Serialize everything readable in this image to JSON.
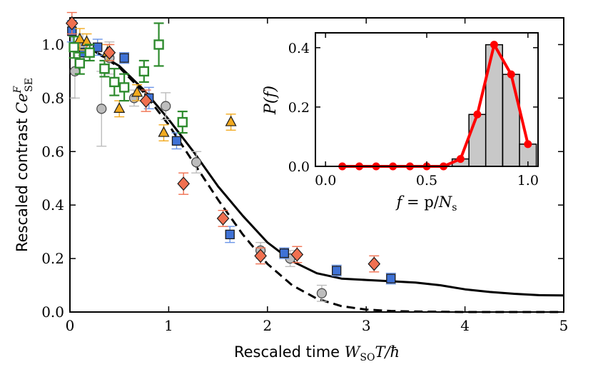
{
  "chart_data": {
    "main": {
      "type": "scatter",
      "xlabel_text": "Rescaled time",
      "xlabel_math": "W",
      "xlabel_sub": "SO",
      "xlabel_rest": "T/ħ",
      "ylabel_text": "Rescaled contrast",
      "ylabel_math": "Ce",
      "ylabel_sup": "F",
      "ylabel_sub": "SE",
      "xlim": [
        0,
        5
      ],
      "ylim": [
        0,
        1.1
      ],
      "xticks": [
        0,
        1,
        2,
        3,
        4,
        5
      ],
      "xtick_labels": [
        "0",
        "1",
        "2",
        "3",
        "4",
        "5"
      ],
      "yticks": [
        0.0,
        0.2,
        0.4,
        0.6,
        0.8,
        1.0
      ],
      "ytick_labels": [
        "0.0",
        "0.2",
        "0.4",
        "0.6",
        "0.8",
        "1.0"
      ],
      "curves": [
        {
          "name": "solid-curve",
          "style": "solid",
          "color": "#000000",
          "x": [
            0,
            0.25,
            0.5,
            0.75,
            1.0,
            1.25,
            1.5,
            1.75,
            2.0,
            2.25,
            2.5,
            2.75,
            3.0,
            3.25,
            3.5,
            3.75,
            4.0,
            4.25,
            4.5,
            4.75,
            5.0
          ],
          "y": [
            1.0,
            0.975,
            0.92,
            0.83,
            0.72,
            0.6,
            0.47,
            0.36,
            0.26,
            0.19,
            0.145,
            0.125,
            0.12,
            0.115,
            0.11,
            0.1,
            0.085,
            0.075,
            0.068,
            0.063,
            0.062
          ]
        },
        {
          "name": "dashed-curve",
          "style": "dashed",
          "color": "#000000",
          "x": [
            0,
            0.25,
            0.5,
            0.75,
            1.0,
            1.25,
            1.5,
            1.75,
            2.0,
            2.25,
            2.5,
            2.75,
            3.0,
            3.25,
            3.5,
            3.75,
            4.0,
            4.5,
            5.0
          ],
          "y": [
            1.0,
            0.975,
            0.915,
            0.82,
            0.7,
            0.56,
            0.42,
            0.29,
            0.18,
            0.1,
            0.05,
            0.022,
            0.009,
            0.004,
            0.002,
            0.001,
            0.0,
            0.0,
            0.0
          ]
        }
      ],
      "series": [
        {
          "name": "gray-circles",
          "marker": "circle",
          "fill": "#bdbdbd",
          "edge": "#444444",
          "errcolor": "#bdbdbd",
          "points": [
            {
              "x": 0.05,
              "y": 0.9,
              "err": 0.1
            },
            {
              "x": 0.13,
              "y": 1.0,
              "err": 0.04
            },
            {
              "x": 0.32,
              "y": 0.76,
              "err": 0.14
            },
            {
              "x": 0.4,
              "y": 0.95,
              "err": 0.06
            },
            {
              "x": 0.65,
              "y": 0.8,
              "err": 0.03
            },
            {
              "x": 0.97,
              "y": 0.77,
              "err": 0.05
            },
            {
              "x": 1.28,
              "y": 0.56,
              "err": 0.04
            },
            {
              "x": 1.93,
              "y": 0.23,
              "err": 0.03
            },
            {
              "x": 2.23,
              "y": 0.2,
              "err": 0.03
            },
            {
              "x": 2.55,
              "y": 0.07,
              "err": 0.03
            }
          ]
        },
        {
          "name": "blue-squares",
          "marker": "square",
          "fill": "#3f72d6",
          "edge": "#1a1a1a",
          "errcolor": "#6a95e8",
          "points": [
            {
              "x": 0.02,
              "y": 1.05,
              "err": 0.04
            },
            {
              "x": 0.14,
              "y": 0.97,
              "err": 0.03
            },
            {
              "x": 0.28,
              "y": 0.99,
              "err": 0.03
            },
            {
              "x": 0.55,
              "y": 0.95,
              "err": 0.02
            },
            {
              "x": 0.8,
              "y": 0.8,
              "err": 0.04
            },
            {
              "x": 1.08,
              "y": 0.64,
              "err": 0.03
            },
            {
              "x": 1.62,
              "y": 0.29,
              "err": 0.03
            },
            {
              "x": 2.17,
              "y": 0.22,
              "err": 0.02
            },
            {
              "x": 2.7,
              "y": 0.155,
              "err": 0.02
            },
            {
              "x": 3.25,
              "y": 0.125,
              "err": 0.02
            }
          ]
        },
        {
          "name": "orange-triangles",
          "marker": "triangle",
          "fill": "#f2aa1f",
          "edge": "#1a1a1a",
          "errcolor": "#f2aa1f",
          "points": [
            {
              "x": 0.1,
              "y": 1.02,
              "err": 0.04
            },
            {
              "x": 0.17,
              "y": 1.01,
              "err": 0.03
            },
            {
              "x": 0.38,
              "y": 0.97,
              "err": 0.03
            },
            {
              "x": 0.5,
              "y": 0.76,
              "err": 0.03
            },
            {
              "x": 0.68,
              "y": 0.82,
              "err": 0.03
            },
            {
              "x": 0.95,
              "y": 0.67,
              "err": 0.03
            },
            {
              "x": 1.63,
              "y": 0.71,
              "err": 0.03
            }
          ]
        },
        {
          "name": "green-squares",
          "marker": "open-square",
          "fill": "#ffffff",
          "edge": "#2e8b2e",
          "errcolor": "#2e8b2e",
          "points": [
            {
              "x": 0.04,
              "y": 0.99,
              "err": 0.04
            },
            {
              "x": 0.1,
              "y": 0.93,
              "err": 0.04
            },
            {
              "x": 0.2,
              "y": 0.97,
              "err": 0.03
            },
            {
              "x": 0.35,
              "y": 0.91,
              "err": 0.03
            },
            {
              "x": 0.45,
              "y": 0.86,
              "err": 0.05
            },
            {
              "x": 0.55,
              "y": 0.84,
              "err": 0.05
            },
            {
              "x": 0.75,
              "y": 0.9,
              "err": 0.04
            },
            {
              "x": 0.9,
              "y": 1.0,
              "err": 0.08
            },
            {
              "x": 1.14,
              "y": 0.71,
              "err": 0.04
            }
          ]
        },
        {
          "name": "red-diamonds",
          "marker": "diamond",
          "fill": "#f07050",
          "edge": "#1a1a1a",
          "errcolor": "#f07050",
          "points": [
            {
              "x": 0.02,
              "y": 1.08,
              "err": 0.04
            },
            {
              "x": 0.4,
              "y": 0.97,
              "err": 0.03
            },
            {
              "x": 0.77,
              "y": 0.79,
              "err": 0.04
            },
            {
              "x": 1.15,
              "y": 0.48,
              "err": 0.04
            },
            {
              "x": 1.55,
              "y": 0.35,
              "err": 0.03
            },
            {
              "x": 1.93,
              "y": 0.21,
              "err": 0.03
            },
            {
              "x": 2.3,
              "y": 0.215,
              "err": 0.03
            },
            {
              "x": 3.08,
              "y": 0.18,
              "err": 0.03
            }
          ]
        }
      ]
    },
    "inset": {
      "type": "bar",
      "ylabel_math": "P(f)",
      "xlabel_math": "f",
      "xlabel_eq": " = p/",
      "xlabel_n": "N",
      "xlabel_sub": "s",
      "xlim": [
        -0.05,
        1.05
      ],
      "ylim": [
        0,
        0.45
      ],
      "xticks": [
        0.0,
        0.5,
        1.0
      ],
      "xtick_labels": [
        "0.0",
        "0.5",
        "1.0"
      ],
      "yticks": [
        0.0,
        0.2,
        0.4
      ],
      "ytick_labels": [
        "0.0",
        "0.2",
        "0.4"
      ],
      "bar_width": 0.083,
      "bar_color": "#c8c8c8",
      "line_color": "#ff0000",
      "x": [
        0.083,
        0.167,
        0.25,
        0.333,
        0.417,
        0.5,
        0.583,
        0.667,
        0.75,
        0.833,
        0.917,
        1.0
      ],
      "values": [
        0.0,
        0.0,
        0.0,
        0.0,
        0.0,
        0.0,
        0.0,
        0.025,
        0.175,
        0.41,
        0.31,
        0.075
      ]
    }
  }
}
